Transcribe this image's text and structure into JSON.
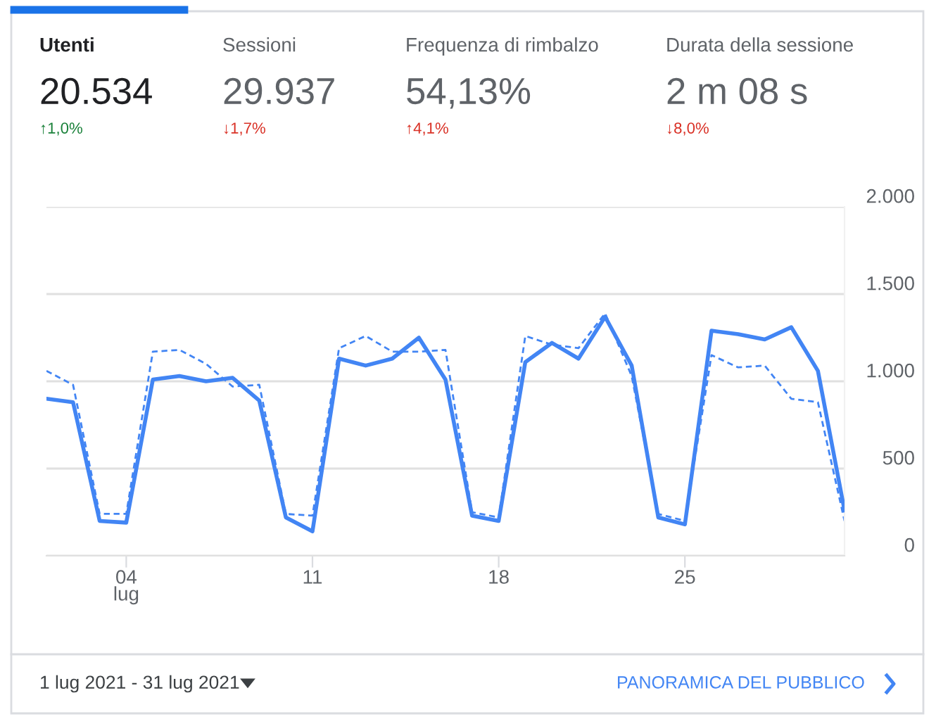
{
  "chart_data": {
    "type": "line",
    "x": [
      1,
      2,
      3,
      4,
      5,
      6,
      7,
      8,
      9,
      10,
      11,
      12,
      13,
      14,
      15,
      16,
      17,
      18,
      19,
      20,
      21,
      22,
      23,
      24,
      25,
      26,
      27,
      28,
      29,
      30,
      31
    ],
    "series": [
      {
        "color": "#4285f4",
        "line_style": "solid",
        "values": [
          900,
          880,
          200,
          190,
          1010,
          1030,
          1000,
          1020,
          890,
          220,
          140,
          1130,
          1090,
          1130,
          1250,
          1010,
          230,
          200,
          1110,
          1220,
          1130,
          1370,
          1090,
          220,
          180,
          1290,
          1270,
          1240,
          1310,
          1060,
          260
        ]
      },
      {
        "color": "#4285f4",
        "line_style": "dashed",
        "values": [
          1060,
          980,
          240,
          240,
          1170,
          1180,
          1100,
          970,
          980,
          240,
          230,
          1190,
          1260,
          1170,
          1170,
          1180,
          250,
          220,
          1260,
          1210,
          1190,
          1390,
          1030,
          240,
          200,
          1150,
          1080,
          1090,
          900,
          880,
          200
        ]
      }
    ],
    "xlim": [
      1,
      31
    ],
    "xticks": [
      {
        "value": 4,
        "label": "04\nlug"
      },
      11,
      18,
      25
    ],
    "ylim": [
      0,
      2000
    ],
    "yticks": [
      {
        "value": 0,
        "label": "0"
      },
      {
        "value": 500,
        "label": "500"
      },
      {
        "value": 1000,
        "label": "1.000"
      },
      {
        "value": 1500,
        "label": "1.500"
      },
      {
        "value": 2000,
        "label": "2.000"
      }
    ],
    "grid": "y",
    "legend": false,
    "marker": "none",
    "annotations": [
      "Utenti",
      "20.534",
      "↑1,0%",
      "Sessioni",
      "29.937",
      "↓1,7%",
      "Frequenza di rimbalzo",
      "54,13%",
      "↑4,1%",
      "Durata della sessione",
      "2 m 08 s",
      "↓8,0%",
      "1 lug 2021 - 31 lug 2021",
      "PANORAMICA DEL PUBBLICO"
    ]
  }
}
